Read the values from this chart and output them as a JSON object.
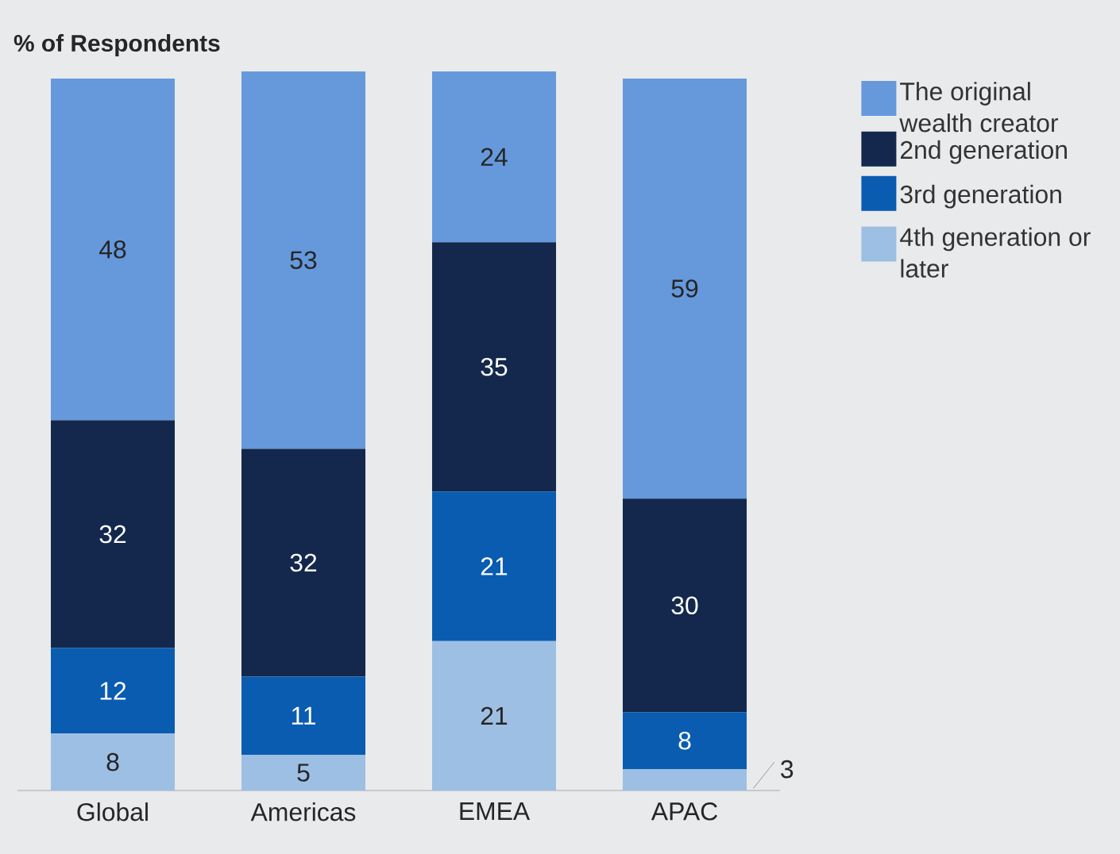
{
  "chart_data": {
    "type": "bar",
    "stacked": true,
    "ylabel": "% of Respondents",
    "categories": [
      "Global",
      "Americas",
      "EMEA",
      "APAC"
    ],
    "ylim": [
      0,
      101
    ],
    "tick_labels": "x",
    "data_labels": true,
    "legend": "right",
    "series": [
      {
        "name": "4th generation or later",
        "color": "#9dbfe3",
        "values": [
          8,
          5,
          21,
          3
        ]
      },
      {
        "name": "3rd generation",
        "color": "#0a5cb0",
        "values": [
          12,
          11,
          21,
          8
        ]
      },
      {
        "name": "2nd generation",
        "color": "#13284c",
        "values": [
          32,
          32,
          35,
          30
        ]
      },
      {
        "name": "The original wealth creator",
        "color": "#6599dc",
        "values": [
          48,
          53,
          24,
          59
        ]
      }
    ]
  }
}
